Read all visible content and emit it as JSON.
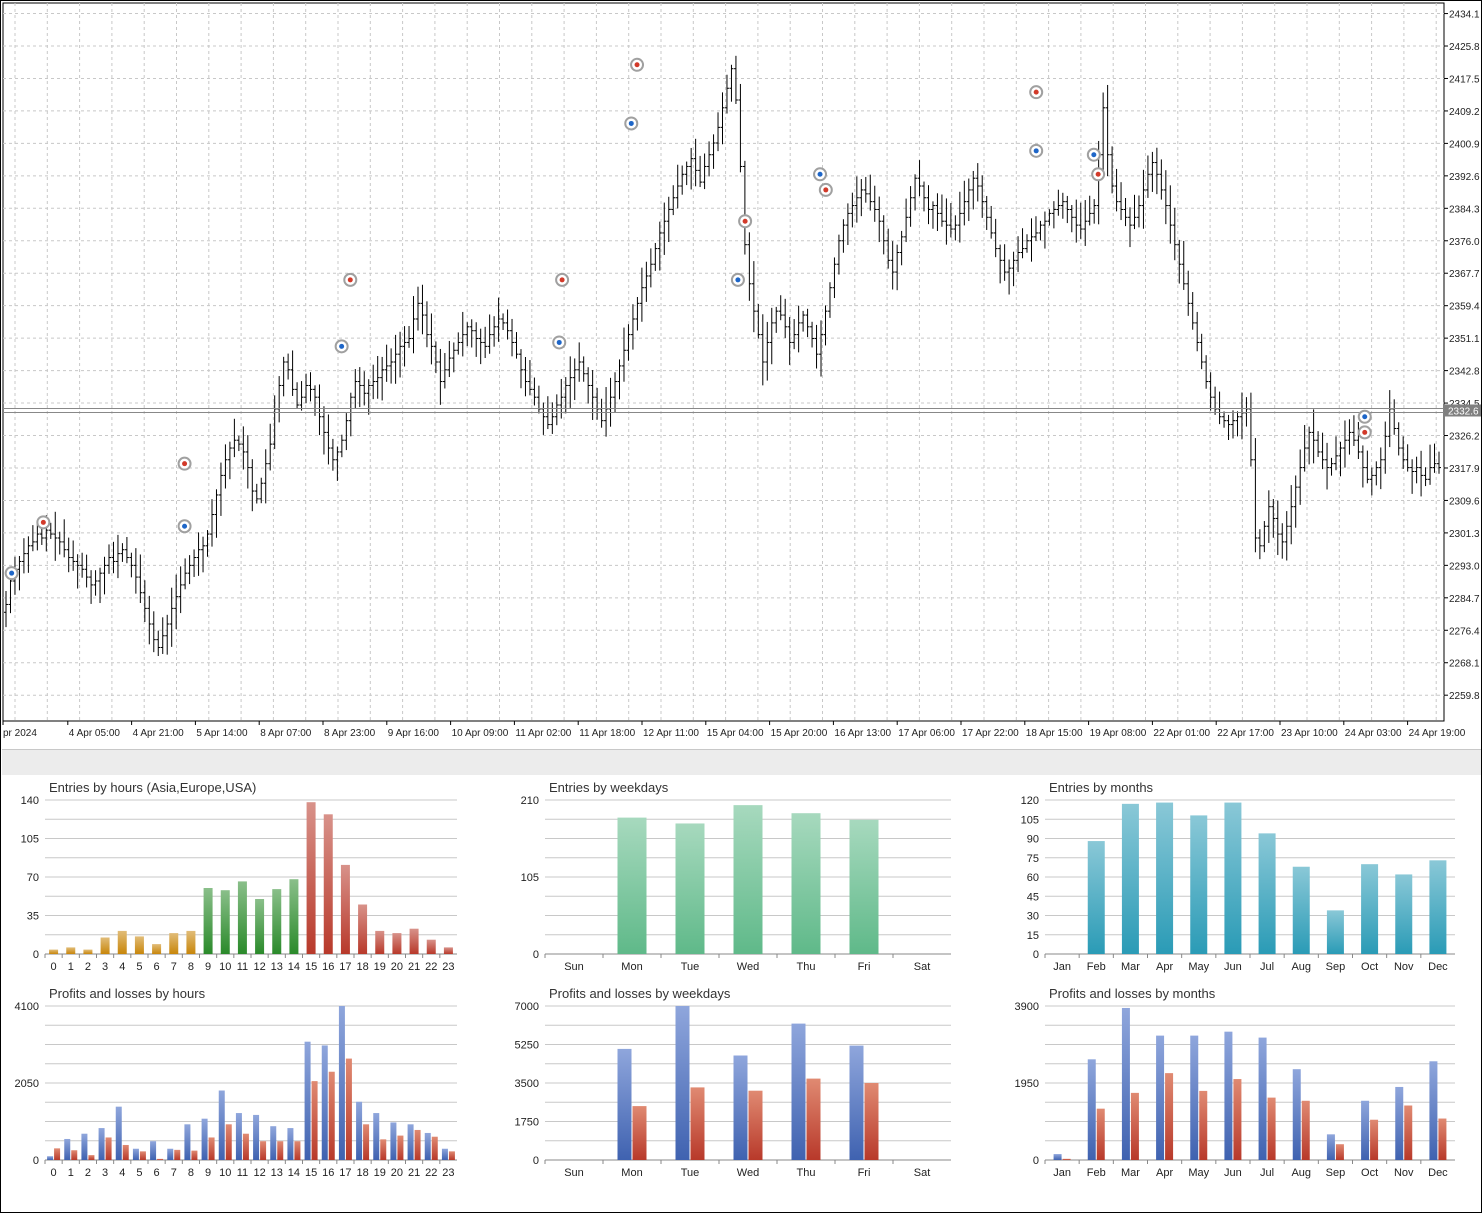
{
  "colors": {
    "candle": "#000000",
    "grid": "#c8c8c8",
    "buy_marker": "#1e66c8",
    "sell_marker": "#d23a2a",
    "price_line": "#888888",
    "price_label_bg": "#808080",
    "hours_asia": "#c8860a",
    "hours_europe": "#2a8a2a",
    "hours_usa": "#b8392a",
    "weekday_bar": "#5fb989",
    "month_bar": "#2a9bb6",
    "profit_bar": "#3f62b0",
    "loss_bar": "#b8392a"
  },
  "chart_data": [
    {
      "type": "candlestick",
      "title": "",
      "y_axis_labels": [
        "2434.1",
        "2425.8",
        "2417.5",
        "2409.2",
        "2400.9",
        "2392.6",
        "2384.3",
        "2376.0",
        "2367.7",
        "2359.4",
        "2351.1",
        "2342.8",
        "2334.5",
        "2326.2",
        "2317.9",
        "2309.6",
        "2301.3",
        "2293.0",
        "2284.7",
        "2276.4",
        "2268.1",
        "2259.8"
      ],
      "ylim": [
        2253.2,
        2436.8
      ],
      "current_price": "2332.6",
      "x_axis_labels": [
        "pr 2024",
        "4 Apr 05:00",
        "4 Apr 21:00",
        "5 Apr 14:00",
        "8 Apr 07:00",
        "8 Apr 23:00",
        "9 Apr 16:00",
        "10 Apr 09:00",
        "11 Apr 02:00",
        "11 Apr 18:00",
        "12 Apr 11:00",
        "15 Apr 04:00",
        "15 Apr 20:00",
        "16 Apr 13:00",
        "17 Apr 06:00",
        "17 Apr 22:00",
        "18 Apr 15:00",
        "19 Apr 08:00",
        "22 Apr 01:00",
        "22 Apr 17:00",
        "23 Apr 10:00",
        "24 Apr 03:00",
        "24 Apr 19:00"
      ],
      "closes": [
        2283,
        2289,
        2292,
        2294,
        2296,
        2298,
        2299,
        2301,
        2300,
        2302,
        2301,
        2300,
        2299,
        2297,
        2295,
        2294,
        2293,
        2292,
        2290,
        2288,
        2289,
        2291,
        2293,
        2295,
        2294,
        2296,
        2297,
        2295,
        2293,
        2290,
        2286,
        2282,
        2278,
        2274,
        2272,
        2275,
        2278,
        2282,
        2285,
        2288,
        2291,
        2293,
        2295,
        2297,
        2298,
        2301,
        2306,
        2311,
        2316,
        2320,
        2323,
        2325,
        2324,
        2322,
        2318,
        2312,
        2310,
        2314,
        2319,
        2324,
        2333,
        2339,
        2345,
        2343,
        2338,
        2334,
        2336,
        2339,
        2338,
        2336,
        2331,
        2327,
        2323,
        2320,
        2322,
        2325,
        2330,
        2336,
        2340,
        2339,
        2337,
        2339,
        2340,
        2341,
        2343,
        2344,
        2345,
        2347,
        2349,
        2350,
        2351,
        2356,
        2360,
        2357,
        2352,
        2349,
        2345,
        2340,
        2343,
        2346,
        2348,
        2350,
        2352,
        2354,
        2353,
        2351,
        2350,
        2349,
        2352,
        2354,
        2356,
        2355,
        2353,
        2350,
        2347,
        2343,
        2340,
        2338,
        2336,
        2333,
        2331,
        2329,
        2331,
        2334,
        2336,
        2339,
        2341,
        2343,
        2345,
        2342,
        2339,
        2336,
        2333,
        2330,
        2333,
        2336,
        2340,
        2344,
        2348,
        2352,
        2356,
        2360,
        2364,
        2367,
        2370,
        2374,
        2378,
        2381,
        2384,
        2387,
        2390,
        2393,
        2395,
        2397,
        2394,
        2391,
        2395,
        2398,
        2401,
        2405,
        2410,
        2415,
        2420,
        2412,
        2395,
        2375,
        2365,
        2358,
        2352,
        2345,
        2350,
        2355,
        2358,
        2357,
        2354,
        2350,
        2352,
        2355,
        2357,
        2354,
        2351,
        2347,
        2352,
        2358,
        2364,
        2370,
        2376,
        2380,
        2383,
        2385,
        2387,
        2389,
        2388,
        2386,
        2384,
        2381,
        2376,
        2371,
        2368,
        2373,
        2377,
        2382,
        2387,
        2392,
        2390,
        2387,
        2384,
        2385,
        2383,
        2381,
        2380,
        2379,
        2380,
        2383,
        2386,
        2389,
        2392,
        2390,
        2386,
        2382,
        2378,
        2374,
        2371,
        2368,
        2369,
        2371,
        2373,
        2374,
        2376,
        2377,
        2378,
        2380,
        2381,
        2383,
        2384,
        2385,
        2386,
        2384,
        2382,
        2380,
        2379,
        2381,
        2383,
        2385,
        2398,
        2410,
        2398,
        2390,
        2386,
        2384,
        2382,
        2380,
        2382,
        2385,
        2389,
        2393,
        2396,
        2393,
        2389,
        2385,
        2380,
        2375,
        2370,
        2365,
        2360,
        2355,
        2350,
        2345,
        2340,
        2336,
        2333,
        2331,
        2330,
        2329,
        2330,
        2331,
        2332,
        2333,
        2320,
        2300,
        2298,
        2303,
        2308,
        2305,
        2301,
        2299,
        2303,
        2308,
        2313,
        2318,
        2323,
        2327,
        2325,
        2322,
        2320,
        2318,
        2319,
        2321,
        2323,
        2325,
        2327,
        2325,
        2322,
        2318,
        2315,
        2316,
        2318,
        2320,
        2326,
        2333,
        2328,
        2323,
        2320,
        2318,
        2317,
        2318,
        2316,
        2315,
        2318,
        2319,
        2318
      ]
    },
    {
      "type": "bar",
      "title": "Entries by hours (Asia,Europe,USA)",
      "categories": [
        "0",
        "1",
        "2",
        "3",
        "4",
        "5",
        "6",
        "7",
        "8",
        "9",
        "10",
        "11",
        "12",
        "13",
        "14",
        "15",
        "16",
        "17",
        "18",
        "19",
        "20",
        "21",
        "22",
        "23"
      ],
      "values": [
        4,
        6,
        4,
        15,
        21,
        16,
        9,
        19,
        21,
        60,
        58,
        66,
        50,
        59,
        68,
        138,
        127,
        81,
        45,
        21,
        19,
        23,
        13,
        6
      ],
      "y_ticks": [
        "0",
        "35",
        "70",
        "105",
        "140"
      ],
      "ylim": [
        0,
        140
      ]
    },
    {
      "type": "bar",
      "title": "Entries by weekdays",
      "categories": [
        "Sun",
        "Mon",
        "Tue",
        "Wed",
        "Thu",
        "Fri",
        "Sat"
      ],
      "values": [
        0,
        186,
        178,
        203,
        192,
        183,
        0
      ],
      "y_ticks": [
        "0",
        "105",
        "210"
      ],
      "ylim": [
        0,
        210
      ]
    },
    {
      "type": "bar",
      "title": "Entries by months",
      "categories": [
        "Jan",
        "Feb",
        "Mar",
        "Apr",
        "May",
        "Jun",
        "Jul",
        "Aug",
        "Sep",
        "Oct",
        "Nov",
        "Dec"
      ],
      "values": [
        0,
        88,
        117,
        118,
        108,
        118,
        94,
        68,
        34,
        70,
        62,
        73
      ],
      "y_ticks": [
        "0",
        "15",
        "30",
        "45",
        "60",
        "75",
        "90",
        "105",
        "120"
      ],
      "ylim": [
        0,
        120
      ]
    },
    {
      "type": "bar",
      "title": "Profits and losses by hours",
      "categories": [
        "0",
        "1",
        "2",
        "3",
        "4",
        "5",
        "6",
        "7",
        "8",
        "9",
        "10",
        "11",
        "12",
        "13",
        "14",
        "15",
        "16",
        "17",
        "18",
        "19",
        "20",
        "21",
        "22",
        "23"
      ],
      "series": [
        {
          "values": [
            100,
            560,
            700,
            850,
            1420,
            300,
            500,
            300,
            950,
            1100,
            1850,
            1250,
            1200,
            900,
            850,
            3150,
            3050,
            4100,
            1550,
            1250,
            1000,
            950,
            720,
            300
          ]
        },
        {
          "values": [
            310,
            260,
            130,
            600,
            400,
            230,
            30,
            270,
            250,
            600,
            950,
            700,
            500,
            500,
            500,
            2100,
            2350,
            2700,
            950,
            550,
            650,
            800,
            620,
            230
          ]
        }
      ],
      "y_ticks": [
        "0",
        "2050",
        "4100"
      ],
      "ylim": [
        0,
        4100
      ]
    },
    {
      "type": "bar",
      "title": "Profits and losses by weekdays",
      "categories": [
        "Sun",
        "Mon",
        "Tue",
        "Wed",
        "Thu",
        "Fri",
        "Sat"
      ],
      "series": [
        {
          "values": [
            0,
            5050,
            7000,
            4750,
            6200,
            5200,
            0
          ]
        },
        {
          "values": [
            0,
            2450,
            3300,
            3150,
            3700,
            3500,
            0
          ]
        }
      ],
      "y_ticks": [
        "0",
        "1750",
        "3500",
        "5250",
        "7000"
      ],
      "ylim": [
        0,
        7000
      ]
    },
    {
      "type": "bar",
      "title": "Profits and losses by months",
      "categories": [
        "Jan",
        "Feb",
        "Mar",
        "Apr",
        "May",
        "Jun",
        "Jul",
        "Aug",
        "Sep",
        "Oct",
        "Nov",
        "Dec"
      ],
      "series": [
        {
          "values": [
            150,
            2550,
            3850,
            3150,
            3150,
            3250,
            3100,
            2300,
            650,
            1500,
            1850,
            2500
          ]
        },
        {
          "values": [
            30,
            1300,
            1700,
            2200,
            1750,
            2050,
            1580,
            1500,
            400,
            1020,
            1380,
            1050
          ]
        }
      ],
      "y_ticks": [
        "0",
        "1950",
        "3900"
      ],
      "ylim": [
        0,
        3900
      ]
    }
  ]
}
